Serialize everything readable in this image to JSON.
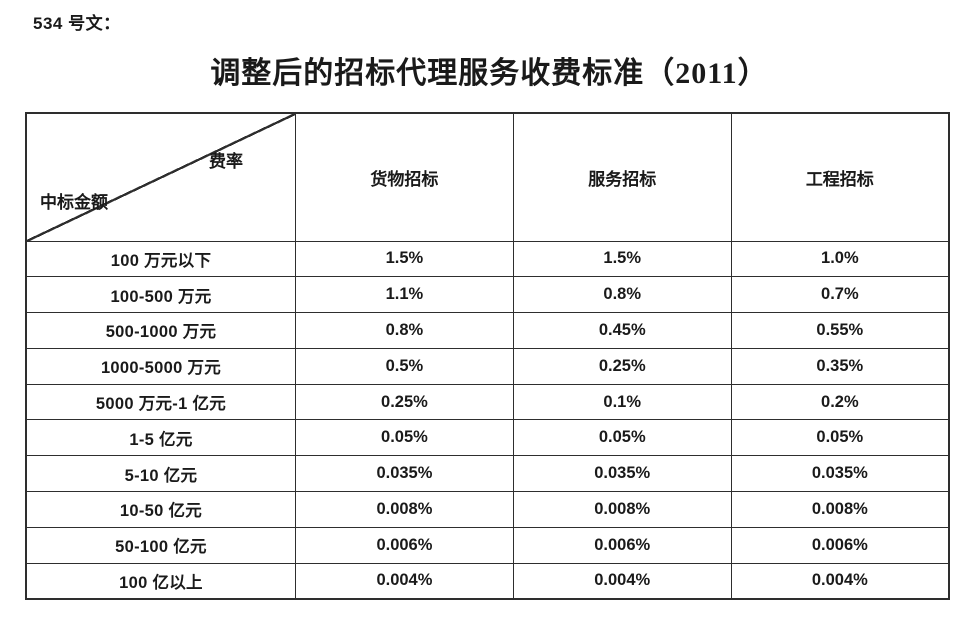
{
  "page": {
    "doc_number": "534 号文：",
    "title": "调整后的招标代理服务收费标准（2011）"
  },
  "table": {
    "corner": {
      "top_right": "费率",
      "bottom_left": "中标金额"
    },
    "columns": [
      "货物招标",
      "服务招标",
      "工程招标"
    ],
    "rows": [
      {
        "label": "100 万元以下",
        "values": [
          "1.5%",
          "1.5%",
          "1.0%"
        ]
      },
      {
        "label": "100-500 万元",
        "values": [
          "1.1%",
          "0.8%",
          "0.7%"
        ]
      },
      {
        "label": "500-1000 万元",
        "values": [
          "0.8%",
          "0.45%",
          "0.55%"
        ]
      },
      {
        "label": "1000-5000 万元",
        "values": [
          "0.5%",
          "0.25%",
          "0.35%"
        ]
      },
      {
        "label": "5000 万元-1 亿元",
        "values": [
          "0.25%",
          "0.1%",
          "0.2%"
        ]
      },
      {
        "label": "1-5 亿元",
        "values": [
          "0.05%",
          "0.05%",
          "0.05%"
        ]
      },
      {
        "label": "5-10 亿元",
        "values": [
          "0.035%",
          "0.035%",
          "0.035%"
        ]
      },
      {
        "label": "10-50 亿元",
        "values": [
          "0.008%",
          "0.008%",
          "0.008%"
        ]
      },
      {
        "label": "50-100 亿元",
        "values": [
          "0.006%",
          "0.006%",
          "0.006%"
        ]
      },
      {
        "label": "100 亿以上",
        "values": [
          "0.004%",
          "0.004%",
          "0.004%"
        ]
      }
    ],
    "colors": {
      "border": "#2e2e2e",
      "text": "#1a1a1a",
      "background": "#ffffff"
    }
  }
}
